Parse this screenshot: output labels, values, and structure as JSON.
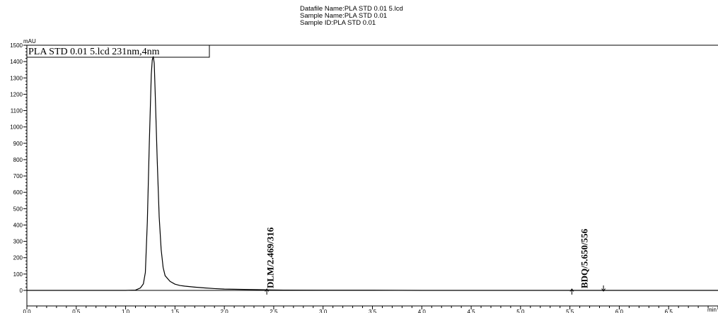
{
  "header": {
    "datafile": "Datafile Name:PLA STD 0.01 5.lcd",
    "sample_name": "Sample Name:PLA STD 0.01",
    "sample_id": "Sample ID:PLA STD 0.01"
  },
  "chart_data": {
    "type": "line",
    "title": "",
    "xlabel": "min",
    "ylabel": "mAU",
    "xlim": [
      0.0,
      7.0
    ],
    "ylim": [
      -50,
      1500
    ],
    "x_ticks": [
      "0.0",
      "0.5",
      "1.0",
      "1.5",
      "2.0",
      "2.5",
      "3.0",
      "3.5",
      "4.0",
      "4.5",
      "5.0",
      "5.5",
      "6.0",
      "6.5"
    ],
    "y_ticks": [
      "0",
      "100",
      "200",
      "300",
      "400",
      "500",
      "600",
      "700",
      "800",
      "900",
      "1000",
      "1100",
      "1200",
      "1300",
      "1400",
      "1500"
    ],
    "grid": false,
    "legend": {
      "text": "PLA STD 0.01 5.lcd 231nm,4nm",
      "position": "top-left"
    },
    "series": [
      {
        "name": "PLA STD 0.01 5.lcd 231nm,4nm",
        "color": "#000000",
        "x": [
          0.0,
          1.0,
          1.1,
          1.15,
          1.18,
          1.2,
          1.22,
          1.24,
          1.26,
          1.27,
          1.28,
          1.29,
          1.3,
          1.32,
          1.34,
          1.36,
          1.38,
          1.4,
          1.45,
          1.5,
          1.55,
          1.6,
          1.7,
          1.8,
          1.9,
          2.0,
          2.2,
          2.4,
          2.469,
          2.6,
          3.0,
          3.5,
          4.0,
          4.5,
          5.0,
          5.52,
          5.65,
          5.84,
          6.0,
          6.5,
          7.0
        ],
        "y": [
          0,
          0,
          2,
          15,
          40,
          110,
          420,
          900,
          1320,
          1410,
          1430,
          1390,
          1200,
          800,
          450,
          250,
          140,
          90,
          55,
          38,
          30,
          26,
          20,
          15,
          11,
          8,
          6,
          4,
          3,
          2,
          1,
          1,
          0,
          0,
          0,
          0,
          0,
          0,
          0,
          0,
          0
        ]
      }
    ],
    "peak_labels": [
      {
        "text": "DLM/2.469/316",
        "x": 2.469
      },
      {
        "text": "BDQ/5.650/556",
        "x": 5.65
      }
    ],
    "integration_marks": [
      {
        "x": 2.43,
        "direction": "up"
      },
      {
        "x": 5.52,
        "direction": "up"
      },
      {
        "x": 5.84,
        "direction": "down"
      }
    ]
  }
}
